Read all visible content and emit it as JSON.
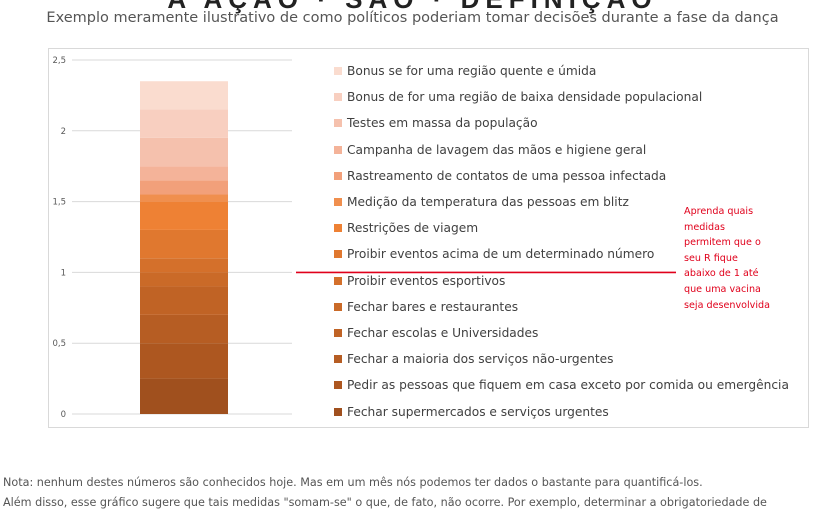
{
  "header": {
    "subtitle": "Exemplo meramente ilustrativo de como políticos poderiam tomar decisões durante a fase da dança"
  },
  "chart_data": {
    "type": "bar",
    "stacked": true,
    "categories": [
      ""
    ],
    "ylim": [
      0,
      2.5
    ],
    "y_ticks": [
      "0",
      "0,5",
      "1",
      "1,5",
      "2",
      "2,5"
    ],
    "y_tick_values": [
      0,
      0.5,
      1,
      1.5,
      2,
      2.5
    ],
    "gridlines": true,
    "legend_position": "right",
    "threshold_line": 1.0,
    "series": [
      {
        "name": "Fechar supermercados e serviços urgentes",
        "value": 0.25,
        "color": "#a0501e"
      },
      {
        "name": "Pedir as pessoas que fiquem em casa exceto por comida ou emergência",
        "value": 0.25,
        "color": "#ad5720"
      },
      {
        "name": "Fechar a maioria dos serviços não-urgentes",
        "value": 0.2,
        "color": "#b65d23"
      },
      {
        "name": "Fechar escolas e Universidades",
        "value": 0.2,
        "color": "#c06325"
      },
      {
        "name": "Fechar bares e restaurantes",
        "value": 0.1,
        "color": "#ca6a28"
      },
      {
        "name": "Proibir eventos esportivos",
        "value": 0.1,
        "color": "#d4702b"
      },
      {
        "name": "Proibir eventos acima de um determinado número",
        "value": 0.2,
        "color": "#e0782f"
      },
      {
        "name": "Restrições de viagem",
        "value": 0.2,
        "color": "#ee8134"
      },
      {
        "name": "Medição da temperatura das pessoas em blitz",
        "value": 0.05,
        "color": "#f08f4e"
      },
      {
        "name": "Rastreamento de contatos de uma pessoa infectada",
        "value": 0.1,
        "color": "#f2a07a"
      },
      {
        "name": "Campanha de lavagem das mãos e higiene geral",
        "value": 0.1,
        "color": "#f4b399"
      },
      {
        "name": "Testes em massa da população",
        "value": 0.2,
        "color": "#f5c1ad"
      },
      {
        "name": "Bonus de for uma região de baixa densidade populacional",
        "value": 0.2,
        "color": "#f8cfc0"
      },
      {
        "name": "Bonus se for uma região quente e úmida",
        "value": 0.2,
        "color": "#fadccf"
      }
    ],
    "legend_order": [
      13,
      12,
      11,
      10,
      9,
      8,
      7,
      6,
      5,
      4,
      3,
      2,
      1,
      0
    ]
  },
  "annotation": {
    "lines": [
      "Aprenda quais",
      "medidas",
      "permitem que o",
      "seu R fique",
      "abaixo de 1 até",
      "que uma vacina",
      "seja desenvolvida"
    ],
    "color": "#e0001b"
  },
  "note": {
    "line1": "Nota: nenhum destes números são conhecidos hoje. Mas em um mês nós podemos ter dados o bastante para quantificá-los.",
    "line2": "Além disso, esse gráfico sugere que tais medidas \"somam-se\" o que, de fato, não ocorre. Por exemplo, determinar a obrigatoriedade de"
  }
}
